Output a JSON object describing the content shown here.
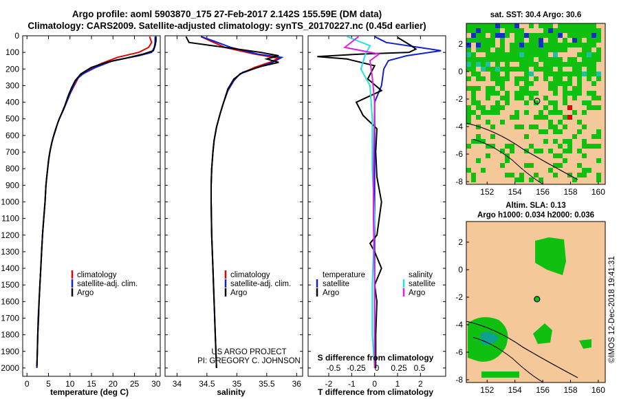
{
  "header": {
    "line1": "Argo profile: aoml 5903870_175 27-Feb-2017 2.142S 155.59E (DM data)",
    "line2": "Climatology: CARS2009. Satellite-adjusted climatology: synTS_20170227.nc (0.45d earlier)"
  },
  "colors": {
    "climatology": "#e00000",
    "satellite": "#1020d0",
    "argo": "#000000",
    "sat_salinity": "#20e0e0",
    "argo_salinity": "#e020e0",
    "land": "#f5c89a",
    "ocean_green": "#10c010"
  },
  "chart_data": [
    {
      "type": "line",
      "id": "temperature",
      "xlabel": "temperature (deg C)",
      "ylabel": "",
      "xlim": [
        -1,
        31
      ],
      "ylim": [
        2050,
        0
      ],
      "xticks": [
        0,
        5,
        10,
        15,
        20,
        25,
        30
      ],
      "yticks": [
        0,
        100,
        200,
        300,
        400,
        500,
        600,
        700,
        800,
        900,
        1000,
        1100,
        1200,
        1300,
        1400,
        1500,
        1600,
        1700,
        1800,
        1900,
        2000
      ],
      "legend": [
        "climatology",
        "satellite-adj. clim.",
        "Argo"
      ],
      "series": [
        {
          "name": "climatology",
          "color": "#e00000",
          "points": [
            [
              28.5,
              5
            ],
            [
              29,
              40
            ],
            [
              28.3,
              70
            ],
            [
              26,
              100
            ],
            [
              21,
              130
            ],
            [
              17,
              170
            ],
            [
              14,
              210
            ],
            [
              12,
              250
            ],
            [
              11,
              300
            ],
            [
              10,
              350
            ],
            [
              9.2,
              400
            ],
            [
              8.4,
              450
            ],
            [
              7.5,
              500
            ],
            [
              6.8,
              550
            ],
            [
              6.2,
              600
            ],
            [
              5.7,
              650
            ],
            [
              5.3,
              700
            ],
            [
              5,
              750
            ],
            [
              4.8,
              800
            ],
            [
              4.6,
              850
            ],
            [
              4.4,
              900
            ],
            [
              4.2,
              1000
            ],
            [
              3.9,
              1100
            ],
            [
              3.6,
              1200
            ],
            [
              3.4,
              1300
            ],
            [
              3.2,
              1400
            ],
            [
              3,
              1500
            ],
            [
              2.8,
              1600
            ],
            [
              2.7,
              1700
            ],
            [
              2.5,
              1800
            ],
            [
              2.4,
              1900
            ],
            [
              2.3,
              2000
            ]
          ]
        },
        {
          "name": "satellite",
          "color": "#1020d0",
          "points": [
            [
              29.8,
              5
            ],
            [
              29.8,
              40
            ],
            [
              29.6,
              70
            ],
            [
              29,
              100
            ],
            [
              26,
              120
            ],
            [
              20,
              150
            ],
            [
              16,
              190
            ],
            [
              13,
              230
            ],
            [
              11.6,
              260
            ],
            [
              10.8,
              300
            ],
            [
              10,
              350
            ],
            [
              9.2,
              400
            ],
            [
              8.4,
              450
            ],
            [
              7.5,
              500
            ],
            [
              6.8,
              550
            ],
            [
              6.2,
              600
            ],
            [
              5.7,
              650
            ],
            [
              5.3,
              700
            ],
            [
              5,
              750
            ],
            [
              4.8,
              800
            ],
            [
              4.6,
              850
            ],
            [
              4.4,
              900
            ],
            [
              4.2,
              1000
            ],
            [
              3.9,
              1100
            ],
            [
              3.6,
              1200
            ],
            [
              3.4,
              1300
            ],
            [
              3.2,
              1400
            ],
            [
              3,
              1500
            ],
            [
              2.8,
              1600
            ],
            [
              2.7,
              1700
            ],
            [
              2.5,
              1800
            ],
            [
              2.4,
              1900
            ],
            [
              2.3,
              2000
            ]
          ]
        },
        {
          "name": "Argo",
          "color": "#000000",
          "points": [
            [
              30,
              5
            ],
            [
              30,
              30
            ],
            [
              29.8,
              60
            ],
            [
              29.4,
              90
            ],
            [
              27,
              110
            ],
            [
              23,
              135
            ],
            [
              18.5,
              160
            ],
            [
              15,
              190
            ],
            [
              12.5,
              230
            ],
            [
              11.2,
              270
            ],
            [
              10.4,
              310
            ],
            [
              9.6,
              360
            ],
            [
              8.8,
              420
            ],
            [
              8,
              470
            ],
            [
              7.2,
              520
            ],
            [
              6.5,
              580
            ],
            [
              5.9,
              630
            ],
            [
              5.4,
              690
            ],
            [
              5.1,
              740
            ],
            [
              4.8,
              800
            ],
            [
              4.6,
              850
            ],
            [
              4.4,
              900
            ],
            [
              4.2,
              1000
            ],
            [
              3.9,
              1100
            ],
            [
              3.6,
              1200
            ],
            [
              3.4,
              1300
            ],
            [
              3.2,
              1400
            ],
            [
              3,
              1500
            ],
            [
              2.8,
              1600
            ],
            [
              2.6,
              1700
            ],
            [
              2.5,
              1800
            ],
            [
              2.4,
              1900
            ],
            [
              2.3,
              1990
            ]
          ]
        }
      ]
    },
    {
      "type": "line",
      "id": "salinity",
      "xlabel": "salinity",
      "ylabel": "",
      "xlim": [
        33.8,
        36.1
      ],
      "ylim": [
        2050,
        0
      ],
      "xticks": [
        34,
        34.5,
        35,
        35.5,
        36
      ],
      "tick_labels": [
        "34",
        "34.5",
        "35",
        "35.5",
        "36"
      ],
      "legend": [
        "climatology",
        "satellite-adj. clim.",
        "Argo"
      ],
      "series": [
        {
          "name": "climatology",
          "color": "#e00000",
          "points": [
            [
              34.4,
              5
            ],
            [
              34.55,
              30
            ],
            [
              34.8,
              70
            ],
            [
              35.3,
              110
            ],
            [
              35.7,
              135
            ],
            [
              35.55,
              160
            ],
            [
              35.3,
              190
            ],
            [
              35.05,
              230
            ],
            [
              34.95,
              270
            ],
            [
              34.85,
              330
            ],
            [
              34.78,
              400
            ],
            [
              34.72,
              470
            ],
            [
              34.66,
              550
            ],
            [
              34.62,
              630
            ],
            [
              34.6,
              700
            ],
            [
              34.58,
              800
            ],
            [
              34.57,
              900
            ],
            [
              34.57,
              1000
            ],
            [
              34.58,
              1200
            ],
            [
              34.6,
              1400
            ],
            [
              34.62,
              1600
            ],
            [
              34.64,
              1800
            ],
            [
              34.66,
              2000
            ]
          ]
        },
        {
          "name": "satellite",
          "color": "#1020d0",
          "points": [
            [
              34.4,
              5
            ],
            [
              34.6,
              30
            ],
            [
              34.9,
              70
            ],
            [
              35.35,
              110
            ],
            [
              35.75,
              130
            ],
            [
              35.6,
              160
            ],
            [
              35.35,
              190
            ],
            [
              35.05,
              230
            ],
            [
              34.95,
              270
            ],
            [
              34.85,
              330
            ],
            [
              34.78,
              400
            ],
            [
              34.72,
              470
            ],
            [
              34.66,
              550
            ],
            [
              34.62,
              630
            ],
            [
              34.6,
              700
            ],
            [
              34.58,
              800
            ],
            [
              34.57,
              900
            ],
            [
              34.57,
              1000
            ],
            [
              34.58,
              1200
            ],
            [
              34.6,
              1400
            ],
            [
              34.62,
              1600
            ],
            [
              34.64,
              1800
            ],
            [
              34.66,
              2000
            ]
          ]
        },
        {
          "name": "Argo",
          "color": "#000000",
          "points": [
            [
              34.15,
              5
            ],
            [
              34.2,
              40
            ],
            [
              34.6,
              60
            ],
            [
              35,
              80
            ],
            [
              35.4,
              100
            ],
            [
              35.7,
              120
            ],
            [
              35.5,
              140
            ],
            [
              35.7,
              160
            ],
            [
              35.4,
              185
            ],
            [
              35.1,
              220
            ],
            [
              34.95,
              260
            ],
            [
              34.85,
              320
            ],
            [
              34.78,
              400
            ],
            [
              34.72,
              470
            ],
            [
              34.66,
              550
            ],
            [
              34.62,
              630
            ],
            [
              34.6,
              700
            ],
            [
              34.58,
              800
            ],
            [
              34.57,
              900
            ],
            [
              34.57,
              1000
            ],
            [
              34.58,
              1200
            ],
            [
              34.6,
              1400
            ],
            [
              34.62,
              1600
            ],
            [
              34.64,
              1800
            ],
            [
              34.66,
              2000
            ]
          ]
        }
      ]
    },
    {
      "type": "line",
      "id": "difference",
      "xlabel": "T difference from climatology",
      "ylabel": "",
      "xlim": [
        -2.9,
        3.1
      ],
      "ylim": [
        2050,
        0
      ],
      "xticks": [
        -2,
        -1,
        0,
        1,
        2
      ],
      "top_axis": {
        "label": "S difference from climatology",
        "ticks": [
          "-0.5",
          "-0.25",
          "0",
          "0.25",
          "0.5"
        ]
      },
      "legend_left_title": "temperature",
      "legend_right_title": "salinity",
      "legend_left": [
        "satellite",
        "Argo"
      ],
      "legend_right": [
        "satellite",
        "Argo"
      ],
      "series": [
        {
          "name": "T satellite",
          "color": "#1020d0",
          "points": [
            [
              0,
              5
            ],
            [
              0.5,
              40
            ],
            [
              2.9,
              90
            ],
            [
              1.4,
              120
            ],
            [
              0.6,
              150
            ],
            [
              0.4,
              200
            ],
            [
              0.3,
              300
            ],
            [
              0,
              400
            ],
            [
              0,
              600
            ],
            [
              0,
              800
            ],
            [
              0,
              1000
            ],
            [
              0,
              1400
            ],
            [
              0,
              1800
            ],
            [
              0,
              2000
            ]
          ]
        },
        {
          "name": "T Argo",
          "color": "#000000",
          "points": [
            [
              1,
              10
            ],
            [
              1.6,
              60
            ],
            [
              1.8,
              80
            ],
            [
              1.5,
              100
            ],
            [
              -0.6,
              110
            ],
            [
              -2.5,
              125
            ],
            [
              -1.2,
              140
            ],
            [
              0,
              180
            ],
            [
              -0.3,
              260
            ],
            [
              0.3,
              330
            ],
            [
              -0.8,
              400
            ],
            [
              -0.5,
              480
            ],
            [
              0.1,
              560
            ],
            [
              0.05,
              700
            ],
            [
              0.1,
              850
            ],
            [
              0.3,
              1000
            ],
            [
              0.1,
              1200
            ],
            [
              -0.2,
              1250
            ],
            [
              0,
              1300
            ],
            [
              0.3,
              1400
            ],
            [
              0,
              1500
            ],
            [
              0.1,
              1600
            ],
            [
              0.05,
              1800
            ],
            [
              0.05,
              2000
            ]
          ]
        },
        {
          "name": "S satellite",
          "color": "#20e0e0",
          "points": [
            [
              -1.2,
              5
            ],
            [
              -0.2,
              60
            ],
            [
              -0.4,
              110
            ],
            [
              -0.6,
              200
            ],
            [
              -0.2,
              300
            ],
            [
              -0.1,
              500
            ],
            [
              -0.1,
              800
            ],
            [
              0,
              1100
            ],
            [
              -0.1,
              1500
            ],
            [
              -0.1,
              1800
            ],
            [
              0,
              2000
            ]
          ]
        },
        {
          "name": "S Argo",
          "color": "#e020e0",
          "points": [
            [
              -0.7,
              5
            ],
            [
              -1.3,
              70
            ],
            [
              0.2,
              110
            ],
            [
              -0.2,
              150
            ],
            [
              -0.1,
              250
            ],
            [
              0,
              400
            ],
            [
              -0.05,
              800
            ],
            [
              -0.05,
              1100
            ],
            [
              0,
              1500
            ],
            [
              0,
              2000
            ]
          ]
        }
      ]
    },
    {
      "type": "heatmap",
      "id": "sst_map",
      "title": "sat. SST: 30.4 Argo: 30.6",
      "xlim": [
        150.5,
        160.5
      ],
      "ylim": [
        -8.2,
        3.5
      ],
      "xticks": [
        152,
        154,
        156,
        158,
        160
      ],
      "yticks": [
        -8,
        -6,
        -4,
        -2,
        0,
        2
      ],
      "marker": {
        "lon": 155.59,
        "lat": -2.142
      }
    },
    {
      "type": "heatmap",
      "id": "sla_map",
      "title_line1": "Altim. SLA: 0.13",
      "title_line2": "Argo h1000: 0.034 h2000: 0.036",
      "xlim": [
        150.5,
        160.5
      ],
      "ylim": [
        -8.2,
        3.5
      ],
      "xticks": [
        152,
        154,
        156,
        158,
        160
      ],
      "yticks": [
        -8,
        -6,
        -4,
        -2,
        0,
        2
      ],
      "marker": {
        "lon": 155.59,
        "lat": -2.142
      }
    }
  ],
  "watermark": "©IMOS 12-Dec-2018 19:41:31",
  "credit_line1": "US ARGO PROJECT",
  "credit_line2": "PI: GREGORY C. JOHNSON"
}
